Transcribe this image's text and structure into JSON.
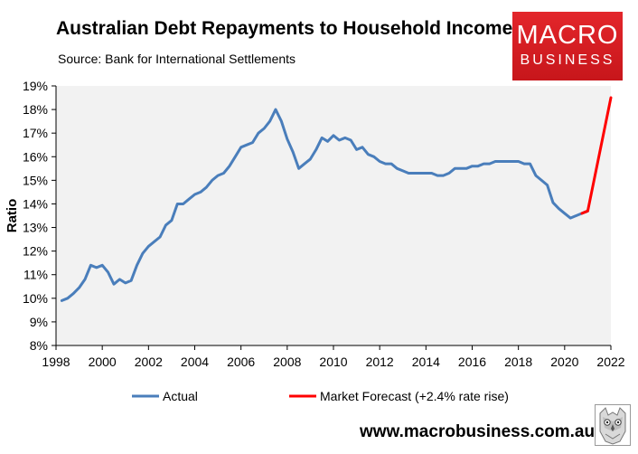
{
  "header": {
    "title": "Australian Debt Repayments to Household Income",
    "subtitle": "Source: Bank for International Settlements"
  },
  "logo": {
    "line1": "MACRO",
    "line2": "BUSINESS"
  },
  "footer": {
    "website": "www.macrobusiness.com.au"
  },
  "colors": {
    "actual": "#4a7ebb",
    "forecast": "#ff0000",
    "plot_bg": "#f2f2f2",
    "logo_bg": "#e3262b"
  },
  "chart_data": {
    "type": "line",
    "title": "Australian Debt Repayments to Household Income",
    "subtitle": "Source: Bank for International Settlements",
    "xlabel": "",
    "ylabel": "Ratio",
    "xlim": [
      1998,
      2022
    ],
    "ylim": [
      8,
      19
    ],
    "x_ticks": [
      "1998",
      "2000",
      "2002",
      "2004",
      "2006",
      "2008",
      "2010",
      "2012",
      "2014",
      "2016",
      "2018",
      "2020",
      "2022"
    ],
    "y_ticks": [
      "8%",
      "9%",
      "10%",
      "11%",
      "12%",
      "13%",
      "14%",
      "15%",
      "16%",
      "17%",
      "18%",
      "19%"
    ],
    "grid": false,
    "legend": "bottom",
    "series": [
      {
        "name": "Actual",
        "color": "#4a7ebb",
        "x": [
          1998.25,
          1998.5,
          1998.75,
          1999.0,
          1999.25,
          1999.5,
          1999.75,
          2000.0,
          2000.25,
          2000.5,
          2000.75,
          2001.0,
          2001.25,
          2001.5,
          2001.75,
          2002.0,
          2002.25,
          2002.5,
          2002.75,
          2003.0,
          2003.25,
          2003.5,
          2003.75,
          2004.0,
          2004.25,
          2004.5,
          2004.75,
          2005.0,
          2005.25,
          2005.5,
          2005.75,
          2006.0,
          2006.25,
          2006.5,
          2006.75,
          2007.0,
          2007.25,
          2007.5,
          2007.75,
          2008.0,
          2008.25,
          2008.5,
          2008.75,
          2009.0,
          2009.25,
          2009.5,
          2009.75,
          2010.0,
          2010.25,
          2010.5,
          2010.75,
          2011.0,
          2011.25,
          2011.5,
          2011.75,
          2012.0,
          2012.25,
          2012.5,
          2012.75,
          2013.0,
          2013.25,
          2013.5,
          2013.75,
          2014.0,
          2014.25,
          2014.5,
          2014.75,
          2015.0,
          2015.25,
          2015.5,
          2015.75,
          2016.0,
          2016.25,
          2016.5,
          2016.75,
          2017.0,
          2017.25,
          2017.5,
          2017.75,
          2018.0,
          2018.25,
          2018.5,
          2018.75,
          2019.0,
          2019.25,
          2019.5,
          2019.75,
          2020.0,
          2020.25,
          2020.5,
          2020.75,
          2021.0
        ],
        "values": [
          9.9,
          10.0,
          10.2,
          10.45,
          10.8,
          11.4,
          11.3,
          11.4,
          11.1,
          10.6,
          10.8,
          10.65,
          10.75,
          11.4,
          11.9,
          12.2,
          12.4,
          12.6,
          13.1,
          13.3,
          14.0,
          14.0,
          14.2,
          14.4,
          14.5,
          14.7,
          15.0,
          15.2,
          15.3,
          15.6,
          16.0,
          16.4,
          16.5,
          16.6,
          17.0,
          17.2,
          17.5,
          18.0,
          17.5,
          16.75,
          16.2,
          15.5,
          15.7,
          15.9,
          16.3,
          16.8,
          16.65,
          16.9,
          16.7,
          16.8,
          16.7,
          16.3,
          16.4,
          16.1,
          16.0,
          15.8,
          15.7,
          15.7,
          15.5,
          15.4,
          15.3,
          15.3,
          15.3,
          15.3,
          15.3,
          15.2,
          15.2,
          15.3,
          15.5,
          15.5,
          15.5,
          15.6,
          15.6,
          15.7,
          15.7,
          15.8,
          15.8,
          15.8,
          15.8,
          15.8,
          15.7,
          15.7,
          15.2,
          15.0,
          14.8,
          14.05,
          13.8,
          13.6,
          13.4,
          13.5,
          13.6,
          13.7
        ]
      },
      {
        "name": "Market Forecast (+2.4% rate rise)",
        "color": "#ff0000",
        "x": [
          2020.75,
          2021.0,
          2022.0
        ],
        "values": [
          13.6,
          13.7,
          18.5
        ]
      }
    ]
  }
}
